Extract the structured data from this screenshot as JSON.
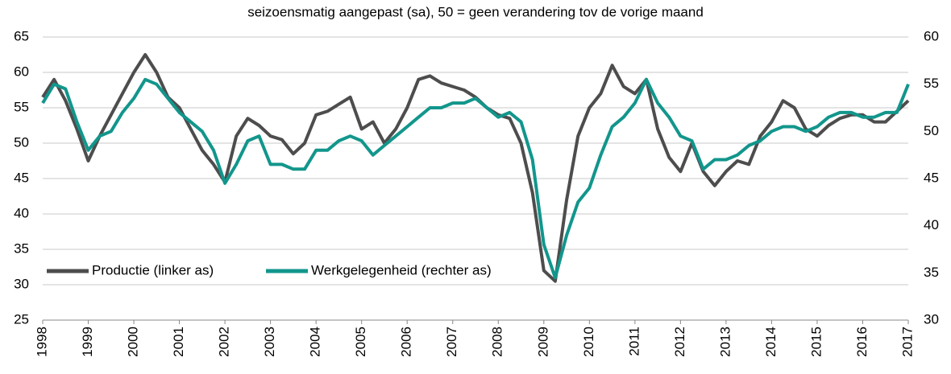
{
  "chart_data": {
    "type": "line",
    "title": "seizoensmatig aangepast (sa), 50 = geen verandering tov de vorige maand",
    "x": [
      1998,
      1998.25,
      1998.5,
      1998.75,
      1999,
      1999.25,
      1999.5,
      1999.75,
      2000,
      2000.25,
      2000.5,
      2000.75,
      2001,
      2001.25,
      2001.5,
      2001.75,
      2002,
      2002.25,
      2002.5,
      2002.75,
      2003,
      2003.25,
      2003.5,
      2003.75,
      2004,
      2004.25,
      2004.5,
      2004.75,
      2005,
      2005.25,
      2005.5,
      2005.75,
      2006,
      2006.25,
      2006.5,
      2006.75,
      2007,
      2007.25,
      2007.5,
      2007.75,
      2008,
      2008.25,
      2008.5,
      2008.75,
      2009,
      2009.25,
      2009.5,
      2009.75,
      2010,
      2010.25,
      2010.5,
      2010.75,
      2011,
      2011.25,
      2011.5,
      2011.75,
      2012,
      2012.25,
      2012.5,
      2012.75,
      2013,
      2013.25,
      2013.5,
      2013.75,
      2014,
      2014.25,
      2014.5,
      2014.75,
      2015,
      2015.25,
      2015.5,
      2015.75,
      2016,
      2016.25,
      2016.5,
      2016.75,
      2017
    ],
    "series": [
      {
        "name": "Productie (linker as)",
        "color": "#4d4d4d",
        "axis": "y",
        "values": [
          56.5,
          59,
          56,
          52,
          47.5,
          51,
          54,
          57,
          60,
          62.5,
          60,
          56.5,
          55,
          52,
          49,
          47,
          44.5,
          51,
          53.5,
          52.5,
          51,
          50.5,
          48.5,
          50,
          54,
          54.5,
          55.5,
          56.5,
          52,
          53,
          50,
          52,
          55,
          59,
          59.5,
          58.5,
          58,
          57.5,
          56.5,
          55,
          54,
          53.5,
          50,
          43,
          32,
          30.5,
          42,
          51,
          55,
          57,
          61,
          58,
          57,
          59,
          52,
          48,
          46,
          50,
          46,
          44,
          46,
          47.5,
          47,
          51,
          53,
          56,
          55,
          52,
          51,
          52.5,
          53.5,
          54,
          54,
          53,
          53,
          54.5,
          56
        ]
      },
      {
        "name": "Werkgelegenheid (rechter as)",
        "color": "#12968c",
        "axis": "y2",
        "values": [
          53,
          55,
          54.5,
          51,
          48,
          49.5,
          50,
          52,
          53.5,
          55.5,
          55,
          53.5,
          52,
          51,
          50,
          48,
          44.5,
          46.5,
          49,
          49.5,
          46.5,
          46.5,
          46,
          46,
          48,
          48,
          49,
          49.5,
          49,
          47.5,
          48.5,
          49.5,
          50.5,
          51.5,
          52.5,
          52.5,
          53,
          53,
          53.5,
          52.5,
          51.5,
          52,
          51,
          47,
          38,
          34.5,
          39,
          42.5,
          44,
          47.5,
          50.5,
          51.5,
          53,
          55.5,
          53,
          51.5,
          49.5,
          49,
          46,
          47,
          47,
          47.5,
          48.5,
          49,
          50,
          50.5,
          50.5,
          50,
          50.5,
          51.5,
          52,
          52,
          51.5,
          51.5,
          52,
          52,
          55
        ]
      }
    ],
    "xlim": [
      1998,
      2017
    ],
    "xticks": [
      1998,
      1999,
      2000,
      2001,
      2002,
      2003,
      2004,
      2005,
      2006,
      2007,
      2008,
      2009,
      2010,
      2011,
      2012,
      2013,
      2014,
      2015,
      2016,
      2017
    ],
    "ylim": [
      25,
      65
    ],
    "yticks": [
      25,
      30,
      35,
      40,
      45,
      50,
      55,
      60,
      65
    ],
    "y2lim": [
      30,
      60
    ],
    "y2ticks": [
      30,
      35,
      40,
      45,
      50,
      55,
      60
    ],
    "grid": true,
    "legend": "lower left"
  }
}
